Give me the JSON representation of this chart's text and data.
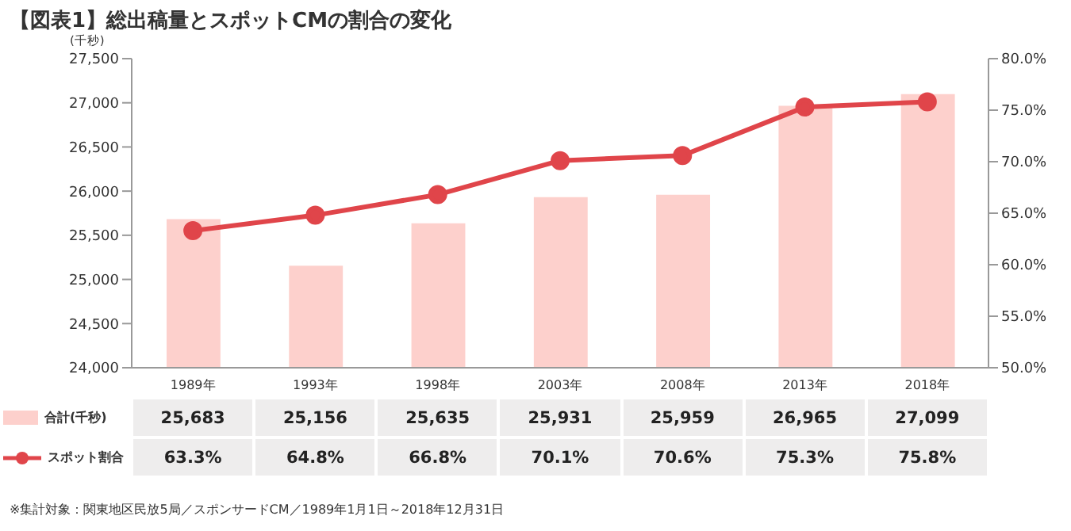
{
  "chart_data": {
    "type": "bar",
    "title": "【図表1】総出稿量とスポットCMの割合の変化",
    "ylabel": "(千秒)",
    "categories": [
      "1989年",
      "1993年",
      "1998年",
      "2003年",
      "2008年",
      "2013年",
      "2018年"
    ],
    "series": [
      {
        "name": "合計(千秒)",
        "color": "#fdd0cc",
        "values": [
          25683,
          25156,
          25635,
          25931,
          25959,
          26965,
          27099
        ],
        "value_labels": [
          "25,683",
          "25,156",
          "25,635",
          "25,931",
          "25,959",
          "26,965",
          "27,099"
        ]
      },
      {
        "name": "スポット割合",
        "type": "line",
        "axis": "y2",
        "color": "#e0454a",
        "values": [
          63.3,
          64.8,
          66.8,
          70.1,
          70.6,
          75.3,
          75.8
        ],
        "value_labels": [
          "63.3%",
          "64.8%",
          "66.8%",
          "70.1%",
          "70.6%",
          "75.3%",
          "75.8%"
        ]
      }
    ],
    "ylim": [
      24000,
      27500
    ],
    "yticks": [
      {
        "value": 24000,
        "label": "24,000"
      },
      {
        "value": 24500,
        "label": "24,500"
      },
      {
        "value": 25000,
        "label": "25,000"
      },
      {
        "value": 25500,
        "label": "25,500"
      },
      {
        "value": 26000,
        "label": "26,000"
      },
      {
        "value": 26500,
        "label": "26,500"
      },
      {
        "value": 27000,
        "label": "27,000"
      },
      {
        "value": 27500,
        "label": "27,500"
      }
    ],
    "y2lim": [
      50,
      80
    ],
    "y2ticks": [
      {
        "value": 50,
        "label": "50.0%"
      },
      {
        "value": 55,
        "label": "55.0%"
      },
      {
        "value": 60,
        "label": "60.0%"
      },
      {
        "value": 65,
        "label": "65.0%"
      },
      {
        "value": 70,
        "label": "70.0%"
      },
      {
        "value": 75,
        "label": "75.0%"
      },
      {
        "value": 80,
        "label": "80.0%"
      }
    ],
    "marker": "circle",
    "line_style": "solid",
    "grid": false,
    "legend": "bottom left",
    "annotations": [
      "※集計対象：関東地区民放5局／スポンサードCM／1989年1月1日～2018年12月31日"
    ]
  }
}
